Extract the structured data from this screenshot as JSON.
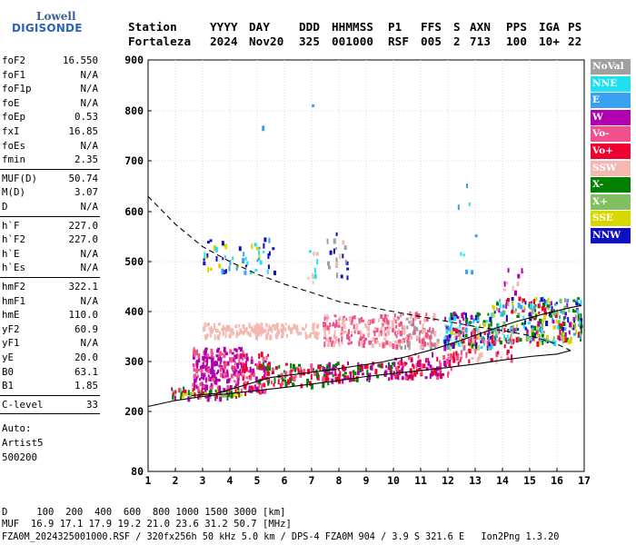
{
  "logo": {
    "line1": "Lowell",
    "line2": "DIGISONDE"
  },
  "header": {
    "row1": [
      "Station",
      "YYYY",
      "DAY",
      "DDD",
      "HHMMSS",
      "P1",
      "FFS",
      "S",
      "AXN",
      "PPS",
      "IGA",
      "PS"
    ],
    "row2": [
      "Fortaleza",
      "2024",
      "Nov20",
      "325",
      "001000",
      "RSF",
      "005",
      "2",
      "713",
      "100",
      "10+",
      "22"
    ]
  },
  "params": [
    {
      "name": "foF2",
      "value": "16.550"
    },
    {
      "name": "foF1",
      "value": "N/A"
    },
    {
      "name": "foF1p",
      "value": "N/A"
    },
    {
      "name": "foE",
      "value": "N/A"
    },
    {
      "name": "foEp",
      "value": "0.53"
    },
    {
      "name": "fxI",
      "value": "16.85"
    },
    {
      "name": "foEs",
      "value": "N/A"
    },
    {
      "name": "fmin",
      "value": "2.35"
    },
    {
      "name": "MUF(D)",
      "value": "50.74"
    },
    {
      "name": "M(D)",
      "value": "3.07"
    },
    {
      "name": "D",
      "value": "N/A"
    },
    {
      "name": "h`F",
      "value": "227.0"
    },
    {
      "name": "h`F2",
      "value": "227.0"
    },
    {
      "name": "h`E",
      "value": "N/A"
    },
    {
      "name": "h`Es",
      "value": "N/A"
    },
    {
      "name": "hmF2",
      "value": "322.1"
    },
    {
      "name": "hmF1",
      "value": "N/A"
    },
    {
      "name": "hmE",
      "value": "110.0"
    },
    {
      "name": "yF2",
      "value": "60.9"
    },
    {
      "name": "yF1",
      "value": "N/A"
    },
    {
      "name": "yE",
      "value": "20.0"
    },
    {
      "name": "B0",
      "value": "63.1"
    },
    {
      "name": "B1",
      "value": "1.85"
    },
    {
      "name": "C-level",
      "value": "33"
    }
  ],
  "auto": {
    "line1": "Auto:",
    "line2": "Artist5",
    "line3": "500200"
  },
  "legend": [
    {
      "label": "NoVal",
      "bg": "#a0a0a0",
      "fg": "#ffffff"
    },
    {
      "label": "NNE",
      "bg": "#1ee0f0",
      "fg": "#ffffff"
    },
    {
      "label": "E",
      "bg": "#3aa0f0",
      "fg": "#ffffff"
    },
    {
      "label": "W",
      "bg": "#b000b0",
      "fg": "#ffffff"
    },
    {
      "label": "Vo-",
      "bg": "#f0508c",
      "fg": "#ffffff"
    },
    {
      "label": "Vo+",
      "bg": "#f00030",
      "fg": "#ffffff"
    },
    {
      "label": "SSW",
      "bg": "#f4b8b0",
      "fg": "#ffffff"
    },
    {
      "label": "X-",
      "bg": "#008000",
      "fg": "#ffffff"
    },
    {
      "label": "X+",
      "bg": "#80c060",
      "fg": "#ffffff"
    },
    {
      "label": "SSE",
      "bg": "#d8d800",
      "fg": "#ffffff"
    },
    {
      "label": "NNW",
      "bg": "#1010c0",
      "fg": "#ffffff"
    }
  ],
  "chart_data": {
    "type": "scatter",
    "x_ticks": [
      "1",
      "2",
      "3",
      "4",
      "5",
      "6",
      "7",
      "8",
      "9",
      "10",
      "11",
      "12",
      "13",
      "14",
      "15",
      "16",
      "17"
    ],
    "y_ticks": [
      "80",
      "200",
      "300",
      "400",
      "500",
      "600",
      "700",
      "800",
      "900"
    ],
    "xlim": [
      1,
      17
    ],
    "y_tick_values": [
      80,
      200,
      300,
      400,
      500,
      600,
      700,
      800,
      900
    ],
    "grid": true,
    "series": [
      {
        "name": "NoVal",
        "color": "#a0a0a0"
      },
      {
        "name": "NNE",
        "color": "#1ee0f0"
      },
      {
        "name": "E",
        "color": "#3aa0f0"
      },
      {
        "name": "W",
        "color": "#b000b0"
      },
      {
        "name": "Vo-",
        "color": "#f0508c"
      },
      {
        "name": "Vo+",
        "color": "#f00030"
      },
      {
        "name": "SSW",
        "color": "#f4b8b0"
      },
      {
        "name": "X-",
        "color": "#008000"
      },
      {
        "name": "X+",
        "color": "#80c060"
      },
      {
        "name": "SSE",
        "color": "#d8d800"
      },
      {
        "name": "NNW",
        "color": "#1010c0"
      }
    ],
    "clusters": [
      {
        "x": [
          1.8,
          4.4
        ],
        "y": [
          230,
          250
        ],
        "series": [
          5,
          7,
          8,
          9,
          3
        ],
        "n": 90
      },
      {
        "x": [
          2.6,
          4.6
        ],
        "y": [
          250,
          330
        ],
        "series": [
          3,
          4
        ],
        "n": 220
      },
      {
        "x": [
          4.4,
          5.4
        ],
        "y": [
          240,
          320
        ],
        "series": [
          3,
          4,
          5
        ],
        "n": 80
      },
      {
        "x": [
          3.0,
          7.2
        ],
        "y": [
          352,
          378
        ],
        "series": [
          6
        ],
        "n": 160
      },
      {
        "x": [
          5.0,
          7.6
        ],
        "y": [
          255,
          300
        ],
        "series": [
          5,
          4,
          7
        ],
        "n": 110
      },
      {
        "x": [
          7.4,
          10.2
        ],
        "y": [
          335,
          395
        ],
        "series": [
          6,
          4
        ],
        "n": 170
      },
      {
        "x": [
          7.4,
          10.2
        ],
        "y": [
          265,
          300
        ],
        "series": [
          5,
          3,
          7
        ],
        "n": 110
      },
      {
        "x": [
          10.0,
          11.6
        ],
        "y": [
          330,
          400
        ],
        "series": [
          6,
          4,
          0
        ],
        "n": 110
      },
      {
        "x": [
          10.0,
          12.2
        ],
        "y": [
          270,
          320
        ],
        "series": [
          5,
          4,
          3
        ],
        "n": 100
      },
      {
        "x": [
          11.8,
          13.6
        ],
        "y": [
          330,
          400
        ],
        "series": [
          10,
          7,
          1,
          2,
          3,
          9
        ],
        "n": 140
      },
      {
        "x": [
          12.2,
          14.4
        ],
        "y": [
          300,
          370
        ],
        "series": [
          5,
          4,
          6
        ],
        "n": 90
      },
      {
        "x": [
          13.6,
          16.9
        ],
        "y": [
          340,
          430
        ],
        "series": [
          10,
          7,
          8,
          9,
          1,
          2,
          3,
          5,
          0
        ],
        "n": 300
      },
      {
        "x": [
          3.0,
          5.6
        ],
        "y": [
          480,
          550
        ],
        "series": [
          2,
          1,
          9,
          10
        ],
        "n": 55
      },
      {
        "x": [
          7.5,
          8.3
        ],
        "y": [
          470,
          560
        ],
        "series": [
          6,
          0,
          10
        ],
        "n": 22
      },
      {
        "x": [
          6.8,
          7.2
        ],
        "y": [
          450,
          530
        ],
        "series": [
          1,
          6
        ],
        "n": 12
      },
      {
        "x": [
          12.0,
          13.0
        ],
        "y": [
          430,
          660
        ],
        "series": [
          1,
          2
        ],
        "n": 8
      },
      {
        "x": [
          14.0,
          14.8
        ],
        "y": [
          440,
          490
        ],
        "series": [
          3,
          6
        ],
        "n": 10
      },
      {
        "x": [
          5.0,
          5.2
        ],
        "y": [
          760,
          790
        ],
        "series": [
          2
        ],
        "n": 1
      },
      {
        "x": [
          6.9,
          7.1
        ],
        "y": [
          810,
          830
        ],
        "series": [
          2
        ],
        "n": 1
      }
    ],
    "curves": [
      {
        "style": "dashed",
        "points": [
          [
            1,
            630
          ],
          [
            2,
            575
          ],
          [
            3,
            530
          ],
          [
            4,
            500
          ],
          [
            5,
            475
          ],
          [
            6,
            455
          ],
          [
            7,
            438
          ],
          [
            8,
            420
          ],
          [
            9,
            410
          ],
          [
            10,
            400
          ],
          [
            11,
            390
          ],
          [
            12,
            380
          ],
          [
            13,
            370
          ],
          [
            14,
            362
          ],
          [
            15,
            352
          ],
          [
            16,
            335
          ],
          [
            16.5,
            322
          ]
        ]
      },
      {
        "style": "solid",
        "points": [
          [
            1,
            210
          ],
          [
            2,
            222
          ],
          [
            3,
            230
          ],
          [
            4,
            236
          ],
          [
            5,
            242
          ],
          [
            6,
            248
          ],
          [
            7,
            255
          ],
          [
            8,
            262
          ],
          [
            9,
            270
          ],
          [
            10,
            276
          ],
          [
            11,
            282
          ],
          [
            12,
            288
          ],
          [
            13,
            295
          ],
          [
            14,
            303
          ],
          [
            15,
            310
          ],
          [
            16,
            315
          ],
          [
            16.5,
            322
          ]
        ]
      },
      {
        "style": "solid",
        "points": [
          [
            2.6,
            232
          ],
          [
            3.5,
            236
          ],
          [
            4.5,
            252
          ],
          [
            5.5,
            268
          ],
          [
            6.5,
            275
          ],
          [
            7.5,
            282
          ],
          [
            8.5,
            290
          ],
          [
            9.5,
            298
          ],
          [
            10.5,
            310
          ],
          [
            11.5,
            325
          ],
          [
            12.5,
            343
          ],
          [
            13.5,
            362
          ],
          [
            14.5,
            380
          ],
          [
            15.5,
            395
          ],
          [
            16.5,
            408
          ],
          [
            16.9,
            412
          ]
        ]
      }
    ]
  },
  "footer": {
    "d_row": "D     100  200  400  600  800 1000 1500 3000 [km]",
    "muf_row": "MUF  16.9 17.1 17.9 19.2 21.0 23.6 31.2 50.7 [MHz]",
    "info_row": "FZA0M_2024325001000.RSF / 320fx256h 50 kHz 5.0 km / DPS-4 FZA0M 904 / 3.9 S 321.6 E   Ion2Png 1.3.20"
  }
}
